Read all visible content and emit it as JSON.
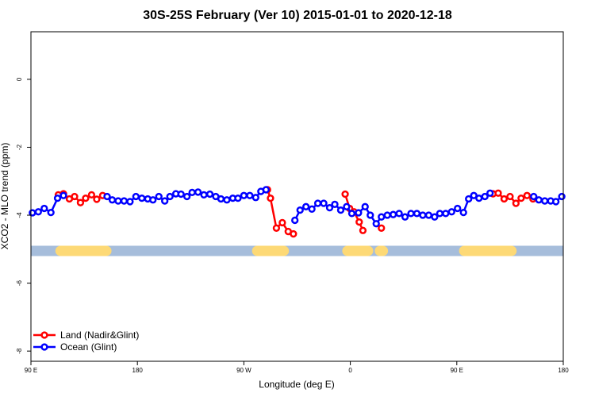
{
  "chart_data": {
    "type": "line",
    "title": "30S-25S February (Ver 10)   2015-01-01 to 2020-12-18",
    "xlabel": "Longitude (deg E)",
    "ylabel": "XCO2 - MLO trend (ppm)",
    "xlim": [
      90,
      450
    ],
    "ylim": [
      -8.3,
      1.4
    ],
    "x_ticks": [
      {
        "value": 90,
        "label": "90 E"
      },
      {
        "value": 162,
        "label": "180"
      },
      {
        "value": 234,
        "label": "90 W"
      },
      {
        "value": 306,
        "label": "0"
      },
      {
        "value": 378,
        "label": "90 E"
      },
      {
        "value": 450,
        "label": "180"
      }
    ],
    "y_ticks": [
      {
        "value": 0,
        "label": "0"
      },
      {
        "value": -2,
        "label": "-2"
      },
      {
        "value": -4,
        "label": "-4"
      },
      {
        "value": -6,
        "label": "-6"
      },
      {
        "value": -8,
        "label": "-8"
      }
    ],
    "grid": false,
    "legend": "bottom-left",
    "land_ocean_band": {
      "y": -5.05,
      "ocean_color": "#a6bddb",
      "land_color": "#fdd976",
      "land_ranges": [
        [
          110,
          141
        ],
        [
          243,
          261
        ],
        [
          304,
          318
        ],
        [
          326,
          328
        ],
        [
          383,
          415
        ]
      ]
    },
    "series": [
      {
        "name": "Land (Nadir&Glint)",
        "color": "#ff0000",
        "segments": [
          {
            "x": [
              108.5,
              112,
              116,
              119.5,
              123.5,
              127,
              131,
              134.5,
              138.5
            ],
            "y": [
              -3.4,
              -3.37,
              -3.52,
              -3.45,
              -3.63,
              -3.5,
              -3.4,
              -3.53,
              -3.42
            ]
          },
          {
            "x": [
              250,
              252,
              256,
              260,
              264,
              267.5
            ],
            "y": [
              -3.25,
              -3.5,
              -4.38,
              -4.22,
              -4.48,
              -4.55
            ]
          },
          {
            "x": [
              302.5,
              305.5,
              308.5,
              312,
              314.5
            ],
            "y": [
              -3.38,
              -3.8,
              -3.9,
              -4.2,
              -4.45
            ]
          },
          {
            "x": [
              327
            ],
            "y": [
              -4.38
            ]
          },
          {
            "x": [
              402.5,
              406,
              410,
              414,
              418,
              421.5,
              425.5,
              429.5
            ],
            "y": [
              -3.37,
              -3.35,
              -3.52,
              -3.45,
              -3.65,
              -3.5,
              -3.42,
              -3.52
            ]
          }
        ]
      },
      {
        "name": "Ocean (Glint)",
        "color": "#0000ff",
        "segments": [
          {
            "x": [
              91,
              95,
              99,
              103.5,
              108,
              112
            ],
            "y": [
              -3.93,
              -3.9,
              -3.8,
              -3.92,
              -3.5,
              -3.42
            ]
          },
          {
            "x": [
              141.5,
              145,
              149,
              153,
              157,
              161,
              165,
              169,
              172.5,
              176.5,
              180.5,
              184,
              188,
              191.5,
              195.5,
              199,
              203,
              207,
              211,
              215,
              218.5,
              222.5,
              226.5,
              230,
              234,
              238,
              242,
              245.5,
              249
            ],
            "y": [
              -3.45,
              -3.55,
              -3.58,
              -3.58,
              -3.6,
              -3.45,
              -3.5,
              -3.52,
              -3.55,
              -3.45,
              -3.58,
              -3.45,
              -3.37,
              -3.38,
              -3.45,
              -3.33,
              -3.32,
              -3.4,
              -3.38,
              -3.45,
              -3.52,
              -3.55,
              -3.5,
              -3.5,
              -3.42,
              -3.42,
              -3.48,
              -3.3,
              -3.25
            ]
          },
          {
            "x": [
              268.5,
              272,
              276,
              280,
              284,
              288,
              292,
              295.5,
              299.5,
              303.5,
              307,
              311.5,
              316,
              319.5,
              323.5,
              327,
              331,
              335,
              339,
              343,
              347,
              351,
              355,
              359,
              363,
              366.5,
              370.5,
              374.5,
              378.5,
              382.5,
              386,
              389.5,
              393,
              397,
              400.5
            ],
            "y": [
              -4.15,
              -3.85,
              -3.75,
              -3.82,
              -3.65,
              -3.65,
              -3.78,
              -3.68,
              -3.85,
              -3.75,
              -3.95,
              -3.93,
              -3.75,
              -4.0,
              -4.25,
              -4.05,
              -4.0,
              -3.98,
              -3.95,
              -4.05,
              -3.95,
              -3.95,
              -4.0,
              -4.0,
              -4.05,
              -3.95,
              -3.95,
              -3.9,
              -3.8,
              -3.92,
              -3.52,
              -3.42,
              -3.5,
              -3.45,
              -3.35
            ]
          },
          {
            "x": [
              430,
              433.5,
              437.5,
              441.5,
              445,
              449
            ],
            "y": [
              -3.45,
              -3.55,
              -3.58,
              -3.58,
              -3.6,
              -3.45
            ]
          }
        ]
      }
    ]
  }
}
